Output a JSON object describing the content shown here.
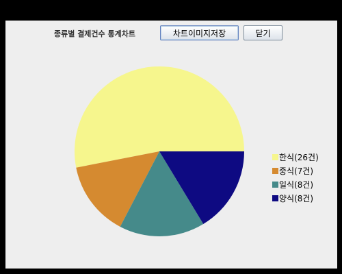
{
  "toolbar": {
    "title": "종류별 결제건수 통계차트",
    "save_label": "차트이미지저장",
    "close_label": "닫기"
  },
  "colors": {
    "background": "#eeeeee",
    "slices": [
      "#f6f68d",
      "#d58a30",
      "#458a8a",
      "#0e0a82"
    ]
  },
  "chart_data": {
    "type": "pie",
    "categories": [
      "한식",
      "중식",
      "일식",
      "양식"
    ],
    "values": [
      26,
      7,
      8,
      8
    ],
    "legend": [
      "한식(26건)",
      "중식(7건)",
      "일식(8건)",
      "양식(8건)"
    ],
    "legend_position": "right",
    "start_angle_deg": 0,
    "direction": "counterclockwise"
  }
}
